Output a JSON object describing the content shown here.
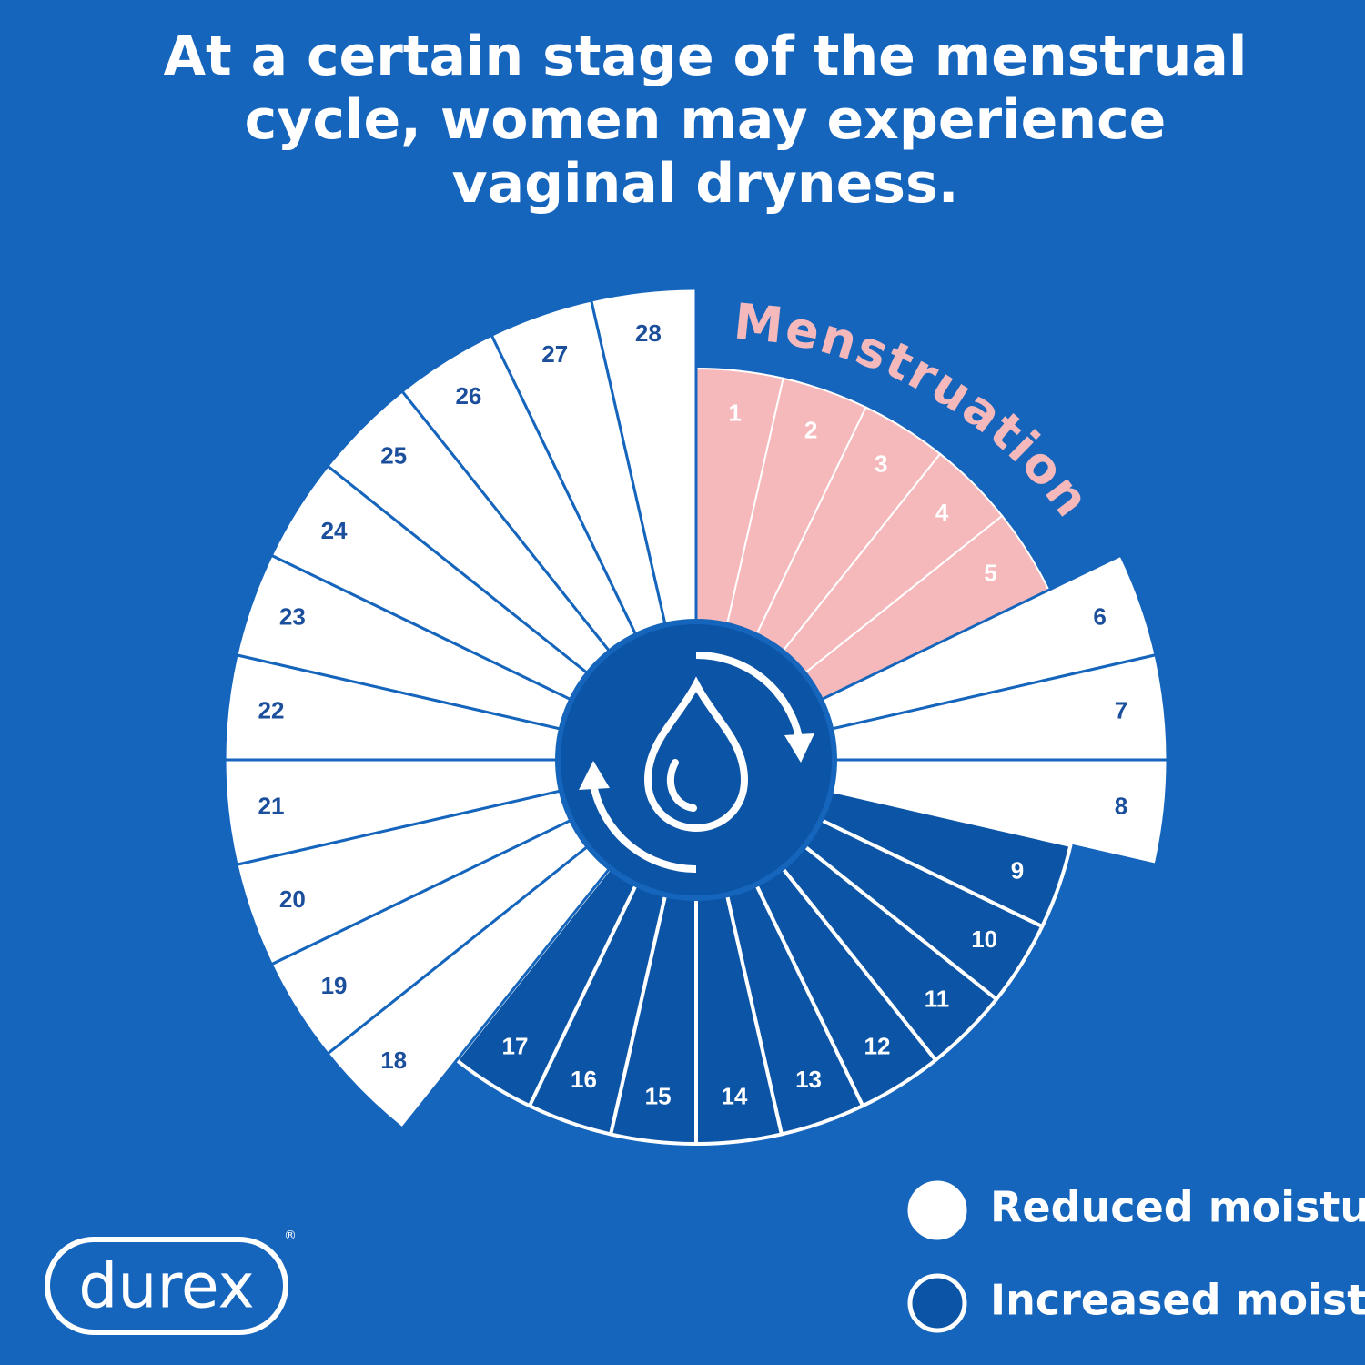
{
  "header": {
    "title_lines": [
      "At a certain stage of the menstrual",
      "cycle, women may experience",
      "vaginal dryness."
    ]
  },
  "phase_label": "Menstruation",
  "segments": [
    {
      "day": "1",
      "phase": "menstruation"
    },
    {
      "day": "2",
      "phase": "menstruation"
    },
    {
      "day": "3",
      "phase": "menstruation"
    },
    {
      "day": "4",
      "phase": "menstruation"
    },
    {
      "day": "5",
      "phase": "menstruation"
    },
    {
      "day": "6",
      "phase": "reduced"
    },
    {
      "day": "7",
      "phase": "reduced"
    },
    {
      "day": "8",
      "phase": "reduced"
    },
    {
      "day": "9",
      "phase": "increased"
    },
    {
      "day": "10",
      "phase": "increased"
    },
    {
      "day": "11",
      "phase": "increased"
    },
    {
      "day": "12",
      "phase": "increased"
    },
    {
      "day": "13",
      "phase": "increased"
    },
    {
      "day": "14",
      "phase": "increased"
    },
    {
      "day": "15",
      "phase": "increased"
    },
    {
      "day": "16",
      "phase": "increased"
    },
    {
      "day": "17",
      "phase": "increased"
    },
    {
      "day": "18",
      "phase": "reduced"
    },
    {
      "day": "19",
      "phase": "reduced"
    },
    {
      "day": "20",
      "phase": "reduced"
    },
    {
      "day": "21",
      "phase": "reduced"
    },
    {
      "day": "22",
      "phase": "reduced"
    },
    {
      "day": "23",
      "phase": "reduced"
    },
    {
      "day": "24",
      "phase": "reduced"
    },
    {
      "day": "25",
      "phase": "reduced"
    },
    {
      "day": "26",
      "phase": "reduced"
    },
    {
      "day": "27",
      "phase": "reduced"
    },
    {
      "day": "28",
      "phase": "reduced"
    }
  ],
  "legend": {
    "items": [
      {
        "label": "Reduced moisture",
        "style": "filled"
      },
      {
        "label": "Increased moisture",
        "style": "outline"
      }
    ]
  },
  "logo": {
    "text": "durex",
    "mark": "®"
  }
}
